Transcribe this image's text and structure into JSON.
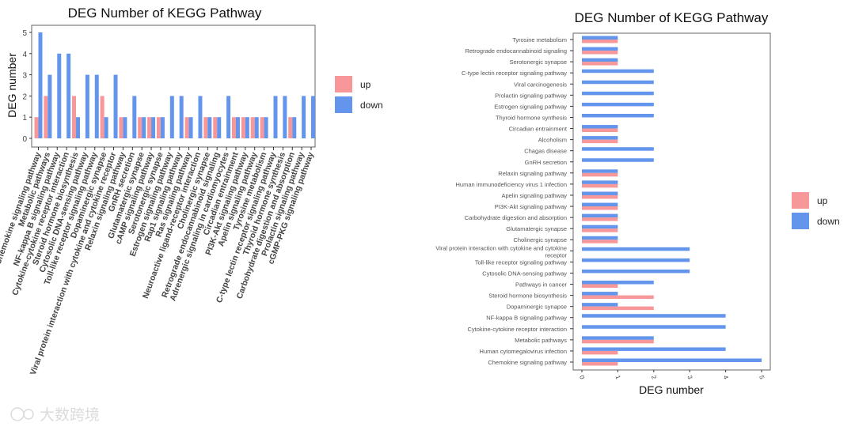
{
  "colors": {
    "up": "#F8979A",
    "down": "#6495ED"
  },
  "watermark": "大数跨境",
  "chart_data": [
    {
      "type": "bar",
      "orientation": "vertical",
      "title": "DEG Number of KEGG Pathway",
      "xlabel": "",
      "ylabel": "DEG number",
      "ylim": [
        0,
        5
      ],
      "yticks": [
        0,
        1,
        2,
        3,
        4,
        5
      ],
      "legend": {
        "placement": "right",
        "entries": [
          "up",
          "down"
        ]
      },
      "categories": [
        "Chemokine signaling pathway",
        "Metabolic pathways",
        "NF-kappa B signaling pathway",
        "Cytokine-cytokine receptor interaction",
        "Steroid hormone biosynthesis",
        "Cytosolic DNA-sensing pathway",
        "Toll-like receptor signaling pathway",
        "Dopaminergic synapse",
        "Viral protein interaction with cytokine and cytokine receptor",
        "Relaxin signaling pathway",
        "GnRH secretion",
        "Glutamatergic synapse",
        "cAMP signaling pathway",
        "Serotonergic synapse",
        "Estrogen signaling pathway",
        "Rap1 signaling pathway",
        "Ras signaling pathway",
        "Neuroactive ligand-receptor interaction",
        "Cholinergic synapse",
        "Retrograde endocannabinoid signaling",
        "Adrenergic signaling in cardiomyocytes",
        "Circadian entrainment",
        "PI3K-Akt signaling pathway",
        "Apelin signaling pathway",
        "Tyrosine metabolism",
        "C-type lectin receptor signaling pathway",
        "Thyroid hormone synthesis",
        "Carbohydrate digestion and absorption",
        "Prolactin signaling pathway",
        "cGMP-PKG signaling pathway"
      ],
      "series": [
        {
          "name": "up",
          "values": [
            1,
            2,
            0,
            0,
            2,
            0,
            0,
            2,
            0,
            1,
            0,
            1,
            1,
            1,
            0,
            0,
            1,
            0,
            1,
            1,
            0,
            1,
            1,
            1,
            1,
            0,
            0,
            1,
            0,
            0
          ]
        },
        {
          "name": "down",
          "values": [
            5,
            3,
            4,
            4,
            1,
            3,
            3,
            1,
            3,
            1,
            2,
            1,
            1,
            1,
            2,
            2,
            1,
            2,
            1,
            1,
            2,
            1,
            1,
            1,
            1,
            2,
            2,
            1,
            2,
            2
          ]
        }
      ]
    },
    {
      "type": "bar",
      "orientation": "horizontal",
      "title": "DEG Number of KEGG Pathway",
      "xlabel": "DEG number",
      "ylabel": "",
      "xlim": [
        0,
        5
      ],
      "xticks": [
        0,
        1,
        2,
        3,
        4,
        5
      ],
      "legend": {
        "placement": "right",
        "entries": [
          "up",
          "down"
        ]
      },
      "categories": [
        "Tyrosine metabolism",
        "Retrograde endocannabinoid signaling",
        "Serotonergic synapse",
        "C-type lectin receptor signaling pathway",
        "Viral carcinogenesis",
        "Prolactin signaling pathway",
        "Estrogen signaling pathway",
        "Thyroid hormone synthesis",
        "Circadian entrainment",
        "Alcoholism",
        "Chagas disease",
        "GnRH secretion",
        "Relaxin signaling pathway",
        "Human immunodeficiency virus 1 infection",
        "Apelin signaling pathway",
        "PI3K-Akt signaling pathway",
        "Carbohydrate digestion and absorption",
        "Glutamatergic synapse",
        "Cholinergic synapse",
        "Viral protein interaction with cytokine and cytokine receptor",
        "Toll-like receptor signaling pathway",
        "Cytosolic DNA-sensing pathway",
        "Pathways in cancer",
        "Steroid hormone biosynthesis",
        "Dopaminergic synapse",
        "NF-kappa B signaling pathway",
        "Cytokine-cytokine receptor interaction",
        "Metabolic pathways",
        "Human cytomegalovirus infection",
        "Chemokine signaling pathway"
      ],
      "series": [
        {
          "name": "up",
          "values": [
            1,
            1,
            1,
            0,
            0,
            0,
            0,
            0,
            1,
            1,
            0,
            0,
            1,
            1,
            1,
            1,
            1,
            1,
            1,
            0,
            0,
            0,
            1,
            2,
            2,
            0,
            0,
            2,
            1,
            1
          ]
        },
        {
          "name": "down",
          "values": [
            1,
            1,
            1,
            2,
            2,
            2,
            2,
            2,
            1,
            1,
            2,
            2,
            1,
            1,
            1,
            1,
            1,
            1,
            1,
            3,
            3,
            3,
            2,
            1,
            1,
            4,
            4,
            2,
            4,
            5
          ]
        }
      ]
    }
  ]
}
